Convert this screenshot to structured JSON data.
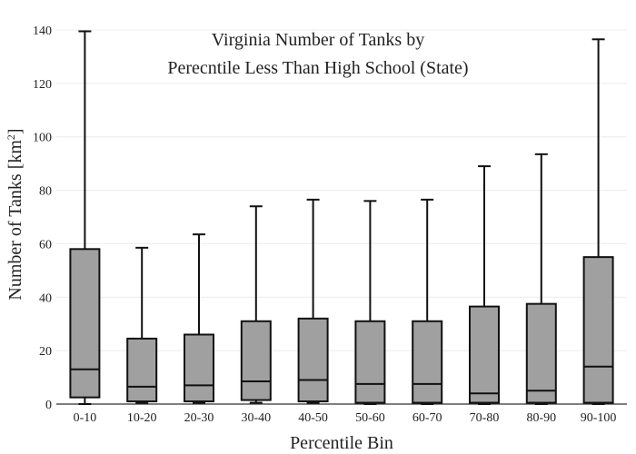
{
  "chart_data": {
    "type": "box",
    "title_lines": [
      "Virginia Number of Tanks by",
      "Perecntile Less Than High School (State)"
    ],
    "xlabel": "Percentile Bin",
    "ylabel_main": "Number of Tanks  [km",
    "ylabel_sup": "2",
    "ylabel_end": "]",
    "ylim": [
      0,
      140
    ],
    "yticks": [
      0,
      20,
      40,
      60,
      80,
      100,
      120,
      140
    ],
    "grid": true,
    "categories": [
      "0-10",
      "10-20",
      "20-30",
      "30-40",
      "40-50",
      "50-60",
      "60-70",
      "70-80",
      "80-90",
      "90-100"
    ],
    "boxes": [
      {
        "min": 0,
        "q1": 2.5,
        "median": 13,
        "q3": 58,
        "max": 139.5
      },
      {
        "min": 0.5,
        "q1": 1,
        "median": 6.5,
        "q3": 24.5,
        "max": 58.5
      },
      {
        "min": 0.5,
        "q1": 1,
        "median": 7,
        "q3": 26,
        "max": 63.5
      },
      {
        "min": 0.5,
        "q1": 1.5,
        "median": 8.5,
        "q3": 31,
        "max": 74
      },
      {
        "min": 0.5,
        "q1": 1,
        "median": 9,
        "q3": 32,
        "max": 76.5
      },
      {
        "min": 0,
        "q1": 0.5,
        "median": 7.5,
        "q3": 31,
        "max": 76
      },
      {
        "min": 0,
        "q1": 0.5,
        "median": 7.5,
        "q3": 31,
        "max": 76.5
      },
      {
        "min": 0,
        "q1": 0.5,
        "median": 4,
        "q3": 36.5,
        "max": 89
      },
      {
        "min": 0,
        "q1": 0.5,
        "median": 5,
        "q3": 37.5,
        "max": 93.5
      },
      {
        "min": 0,
        "q1": 0.5,
        "median": 14,
        "q3": 55,
        "max": 136.5
      }
    ],
    "colors": {
      "box_fill": "#a0a0a0",
      "stroke": "#111111",
      "grid": "#ececec"
    }
  }
}
